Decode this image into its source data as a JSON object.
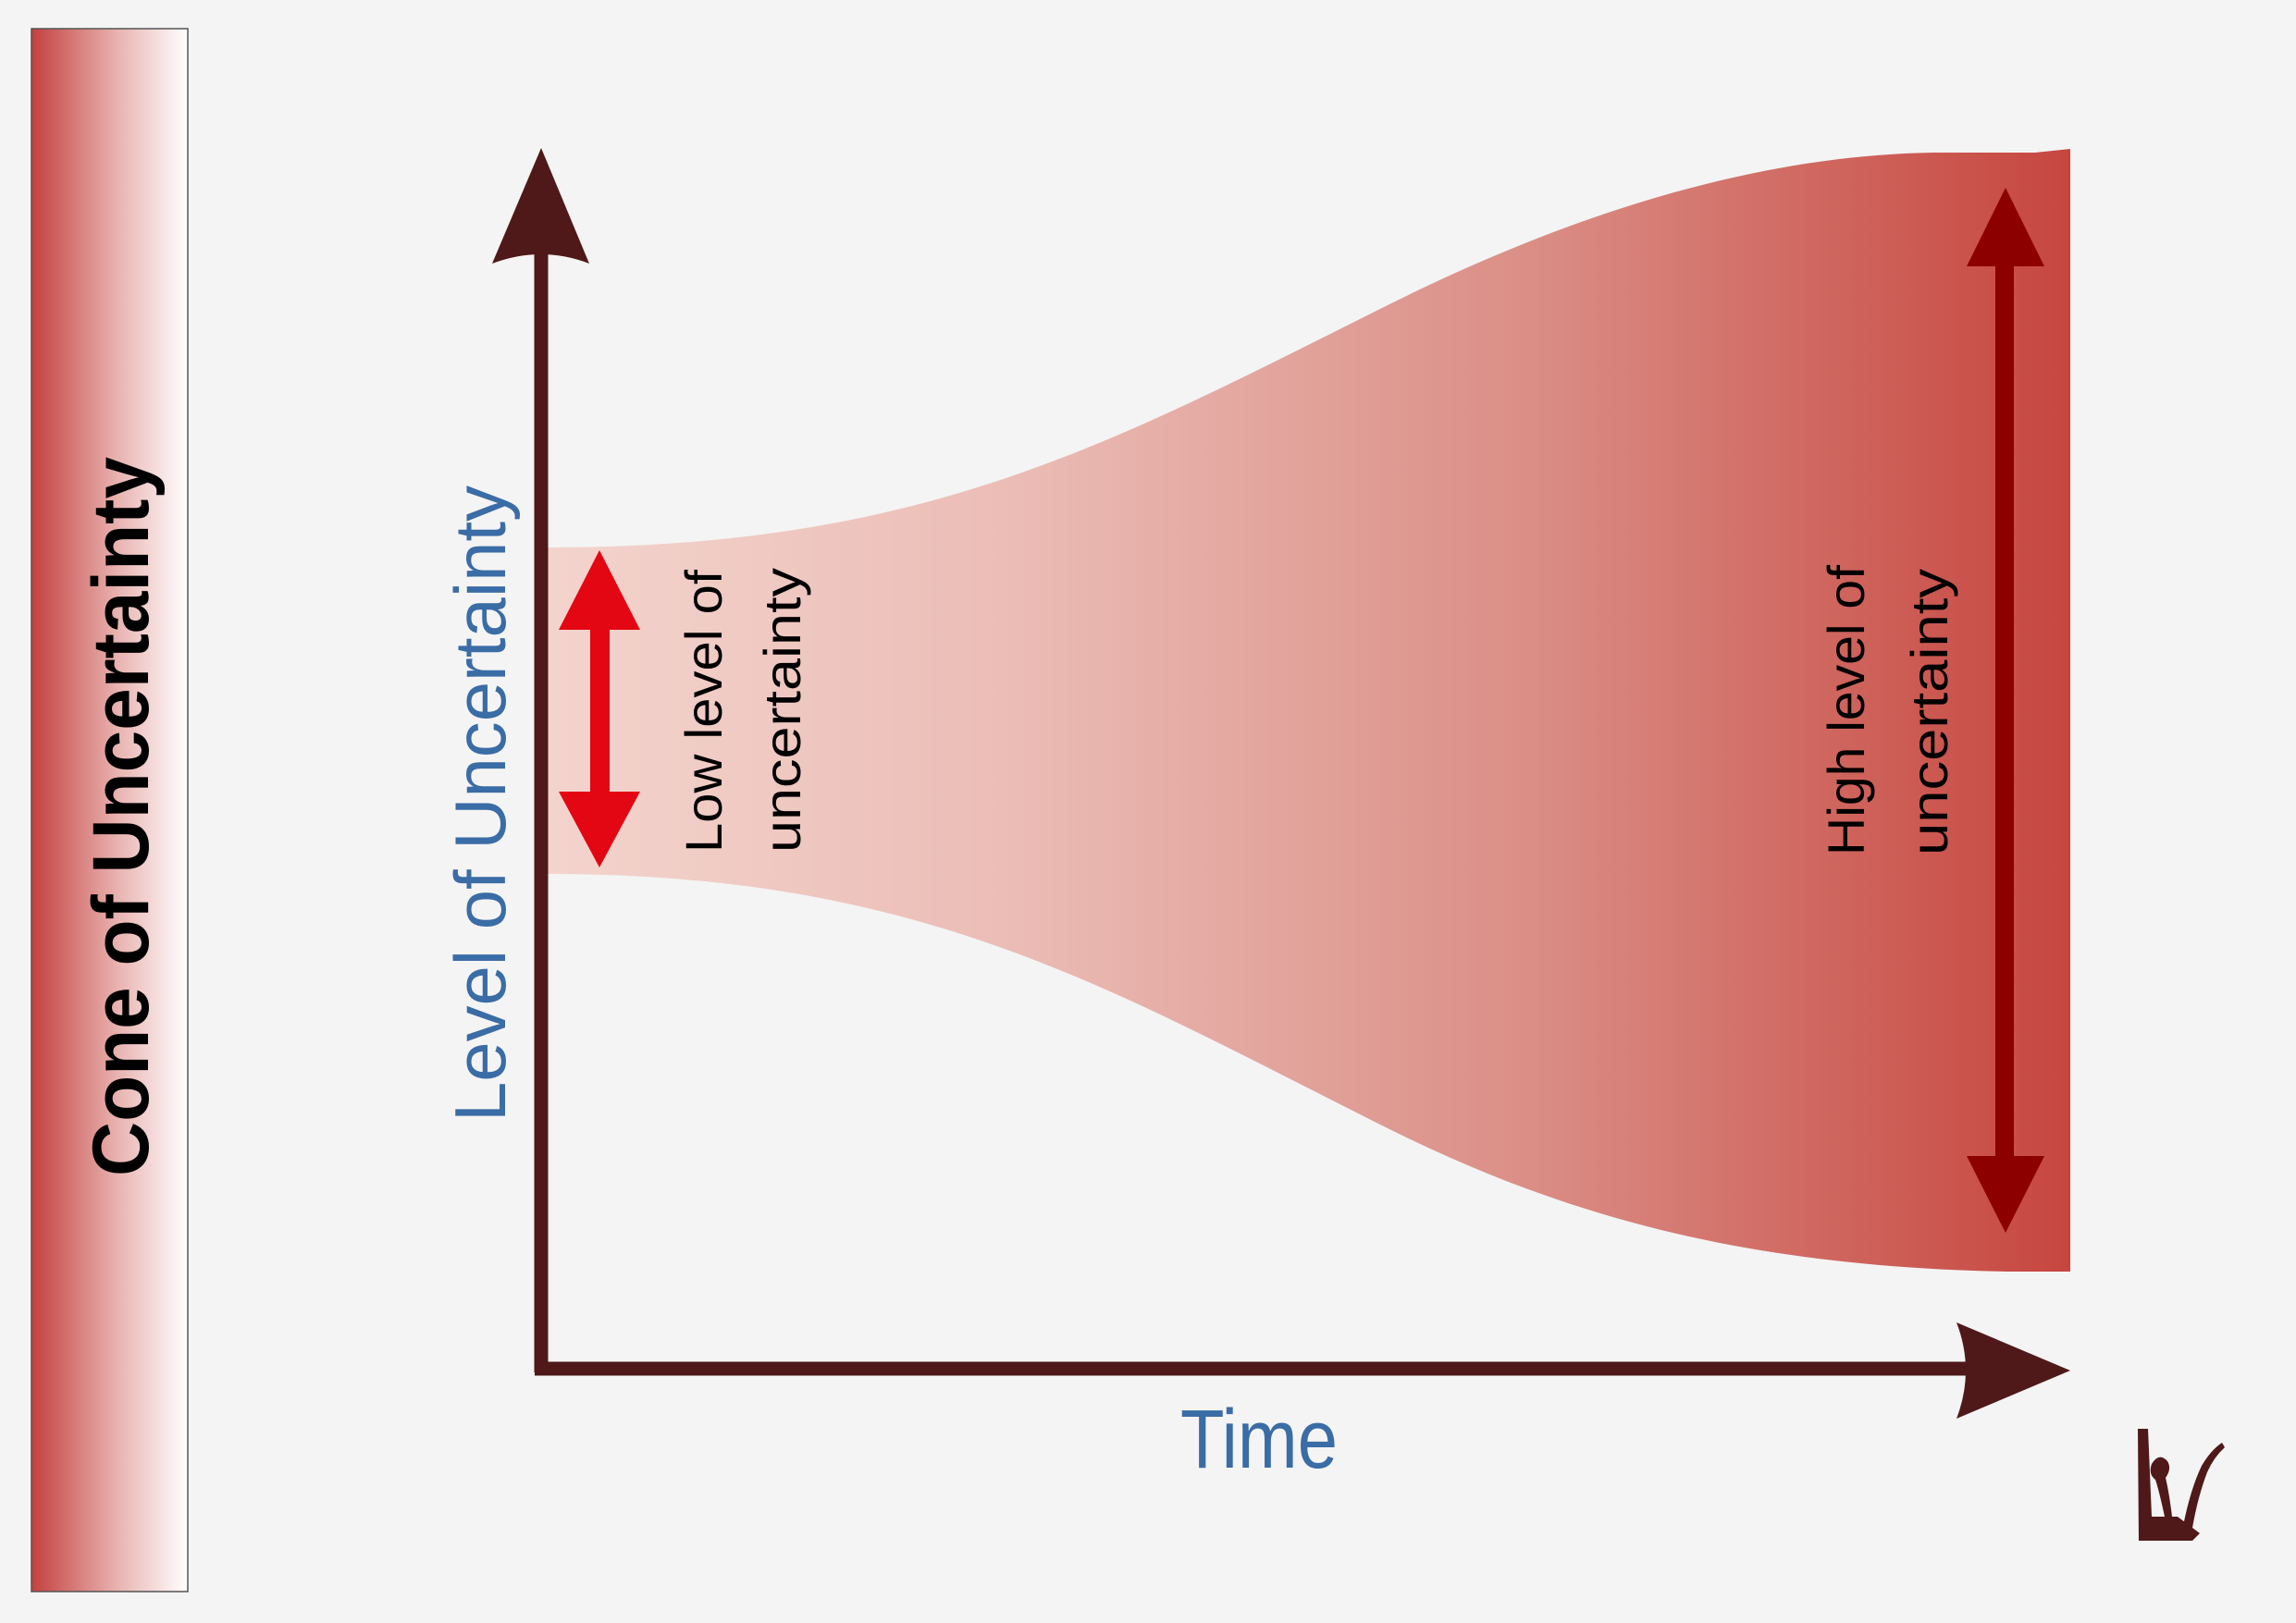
{
  "title": "Cone of Uncertainty",
  "axes": {
    "y_label": "Level of Uncertainty",
    "x_label": "Time"
  },
  "annotations": {
    "low": {
      "line1": "Low level of",
      "line2": "uncertainty"
    },
    "high": {
      "line1": "High level of",
      "line2": "uncertainty"
    }
  },
  "logo": {
    "icon": "signature-logo-icon"
  },
  "colors": {
    "background": "#f4f4f4",
    "cone_light": "#f3d3cc",
    "cone_dark": "#c64640",
    "title_band_dark": "#c4403f",
    "axis": "#4f1919",
    "axis_label": "#3a6ca6",
    "low_arrow": "#e30613",
    "high_arrow": "#8c0000",
    "text": "#000000"
  }
}
